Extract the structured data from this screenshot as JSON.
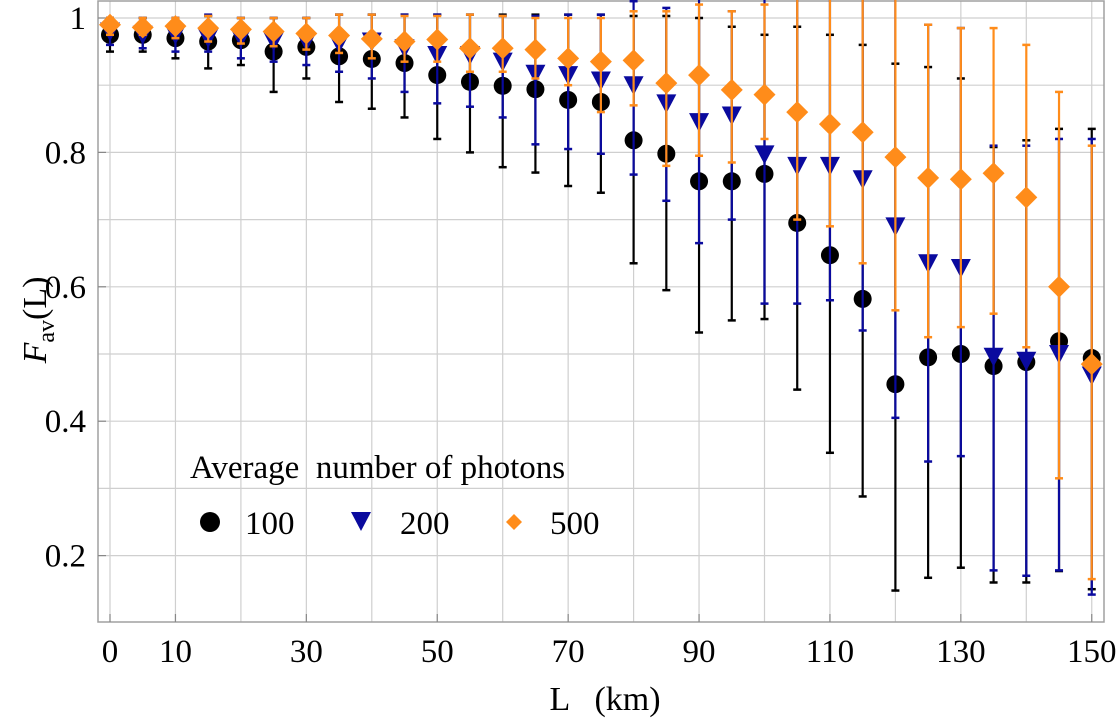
{
  "chart_data": {
    "type": "scatter",
    "title": "",
    "xlabel": "L   (km)",
    "ylabel_main": "F",
    "ylabel_sub": "av",
    "ylabel_tail": "(L)",
    "xlim": [
      -2,
      152
    ],
    "ylim": [
      0.1,
      1.027
    ],
    "x_ticks": [
      0,
      10,
      30,
      50,
      70,
      90,
      110,
      130,
      150
    ],
    "x_tick_labels": [
      "0",
      "10",
      "30",
      "50",
      "70",
      "90",
      "110",
      "130",
      "150"
    ],
    "x_grid": [
      0,
      10,
      20,
      30,
      40,
      50,
      60,
      70,
      80,
      90,
      100,
      110,
      120,
      130,
      140,
      150
    ],
    "y_ticks": [
      0.2,
      0.4,
      0.6,
      0.8,
      1.0
    ],
    "y_tick_labels": [
      "0.2",
      "0.4",
      "0.6",
      "0.8",
      "1"
    ],
    "y_grid": [
      0.2,
      0.3,
      0.4,
      0.5,
      0.6,
      0.7,
      0.8,
      0.9,
      1.0
    ],
    "grid": true,
    "legend": {
      "title": "Average  number of photons",
      "placement": "bottom-left",
      "entries": [
        "100",
        "200",
        "500"
      ]
    },
    "x": [
      0,
      5,
      10,
      15,
      20,
      25,
      30,
      35,
      40,
      45,
      50,
      55,
      60,
      65,
      70,
      75,
      80,
      85,
      90,
      95,
      100,
      105,
      110,
      115,
      120,
      125,
      130,
      135,
      140,
      145,
      150
    ],
    "series": [
      {
        "name": "100",
        "marker": "circle",
        "color": "#000000",
        "values": [
          0.975,
          0.975,
          0.97,
          0.965,
          0.967,
          0.95,
          0.957,
          0.943,
          0.939,
          0.933,
          0.915,
          0.905,
          0.899,
          0.894,
          0.878,
          0.875,
          0.818,
          0.798,
          0.757,
          0.757,
          0.768,
          0.695,
          0.647,
          0.582,
          0.455,
          0.495,
          0.5,
          0.482,
          0.488,
          0.519,
          0.494
        ],
        "lower": [
          0.95,
          0.95,
          0.94,
          0.925,
          0.93,
          0.89,
          0.91,
          0.875,
          0.865,
          0.852,
          0.82,
          0.8,
          0.778,
          0.77,
          0.75,
          0.74,
          0.635,
          0.595,
          0.532,
          0.55,
          0.552,
          0.447,
          0.353,
          0.288,
          0.148,
          0.167,
          0.182,
          0.16,
          0.16,
          0.177,
          0.15
        ],
        "upper": [
          1.0,
          1.0,
          1.0,
          1.003,
          1.0,
          1.0,
          1.0,
          1.005,
          1.005,
          1.005,
          1.005,
          1.005,
          1.005,
          1.005,
          1.005,
          1.005,
          1.003,
          1.003,
          1.0,
          0.987,
          0.975,
          0.987,
          0.975,
          0.96,
          0.932,
          0.927,
          0.91,
          0.808,
          0.818,
          0.835,
          0.835
        ]
      },
      {
        "name": "200",
        "marker": "triangle-down",
        "color": "#0a0a9e",
        "values": [
          0.98,
          0.975,
          0.975,
          0.97,
          0.97,
          0.965,
          0.965,
          0.962,
          0.965,
          0.955,
          0.945,
          0.945,
          0.935,
          0.917,
          0.915,
          0.907,
          0.9,
          0.873,
          0.845,
          0.855,
          0.797,
          0.78,
          0.78,
          0.76,
          0.69,
          0.635,
          0.628,
          0.496,
          0.49,
          0.5,
          0.468
        ],
        "lower": [
          0.96,
          0.955,
          0.95,
          0.95,
          0.94,
          0.935,
          0.93,
          0.92,
          0.91,
          0.89,
          0.873,
          0.868,
          0.852,
          0.812,
          0.805,
          0.798,
          0.767,
          0.728,
          0.665,
          0.7,
          0.575,
          0.575,
          0.58,
          0.535,
          0.405,
          0.34,
          0.348,
          0.178,
          0.17,
          0.178,
          0.142
        ],
        "upper": [
          1.0,
          1.0,
          1.0,
          1.005,
          1.0,
          1.0,
          1.0,
          1.005,
          1.005,
          1.005,
          1.005,
          1.005,
          1.003,
          1.003,
          1.005,
          1.005,
          1.025,
          1.015,
          1.03,
          1.01,
          1.03,
          1.03,
          1.03,
          1.03,
          1.03,
          0.99,
          0.985,
          0.81,
          0.81,
          0.82,
          0.82
        ]
      },
      {
        "name": "500",
        "marker": "diamond",
        "color": "#ff8c1a",
        "values": [
          0.99,
          0.986,
          0.988,
          0.985,
          0.983,
          0.98,
          0.977,
          0.974,
          0.969,
          0.965,
          0.968,
          0.955,
          0.955,
          0.953,
          0.94,
          0.935,
          0.937,
          0.903,
          0.915,
          0.893,
          0.886,
          0.86,
          0.842,
          0.83,
          0.793,
          0.762,
          0.76,
          0.769,
          0.733,
          0.6,
          0.485
        ],
        "lower": [
          0.975,
          0.975,
          0.97,
          0.965,
          0.962,
          0.958,
          0.953,
          0.948,
          0.94,
          0.935,
          0.935,
          0.92,
          0.92,
          0.91,
          0.9,
          0.86,
          0.87,
          0.78,
          0.795,
          0.785,
          0.82,
          0.7,
          0.69,
          0.635,
          0.565,
          0.525,
          0.54,
          0.56,
          0.51,
          0.315,
          0.165
        ],
        "upper": [
          1.0,
          1.0,
          1.0,
          1.003,
          1.0,
          1.0,
          1.0,
          1.005,
          1.005,
          1.003,
          1.003,
          1.005,
          1.003,
          1.0,
          1.0,
          1.0,
          1.01,
          1.01,
          1.02,
          1.01,
          1.02,
          1.03,
          1.03,
          1.03,
          1.03,
          0.99,
          0.985,
          0.985,
          0.96,
          0.89,
          0.81
        ]
      }
    ]
  }
}
